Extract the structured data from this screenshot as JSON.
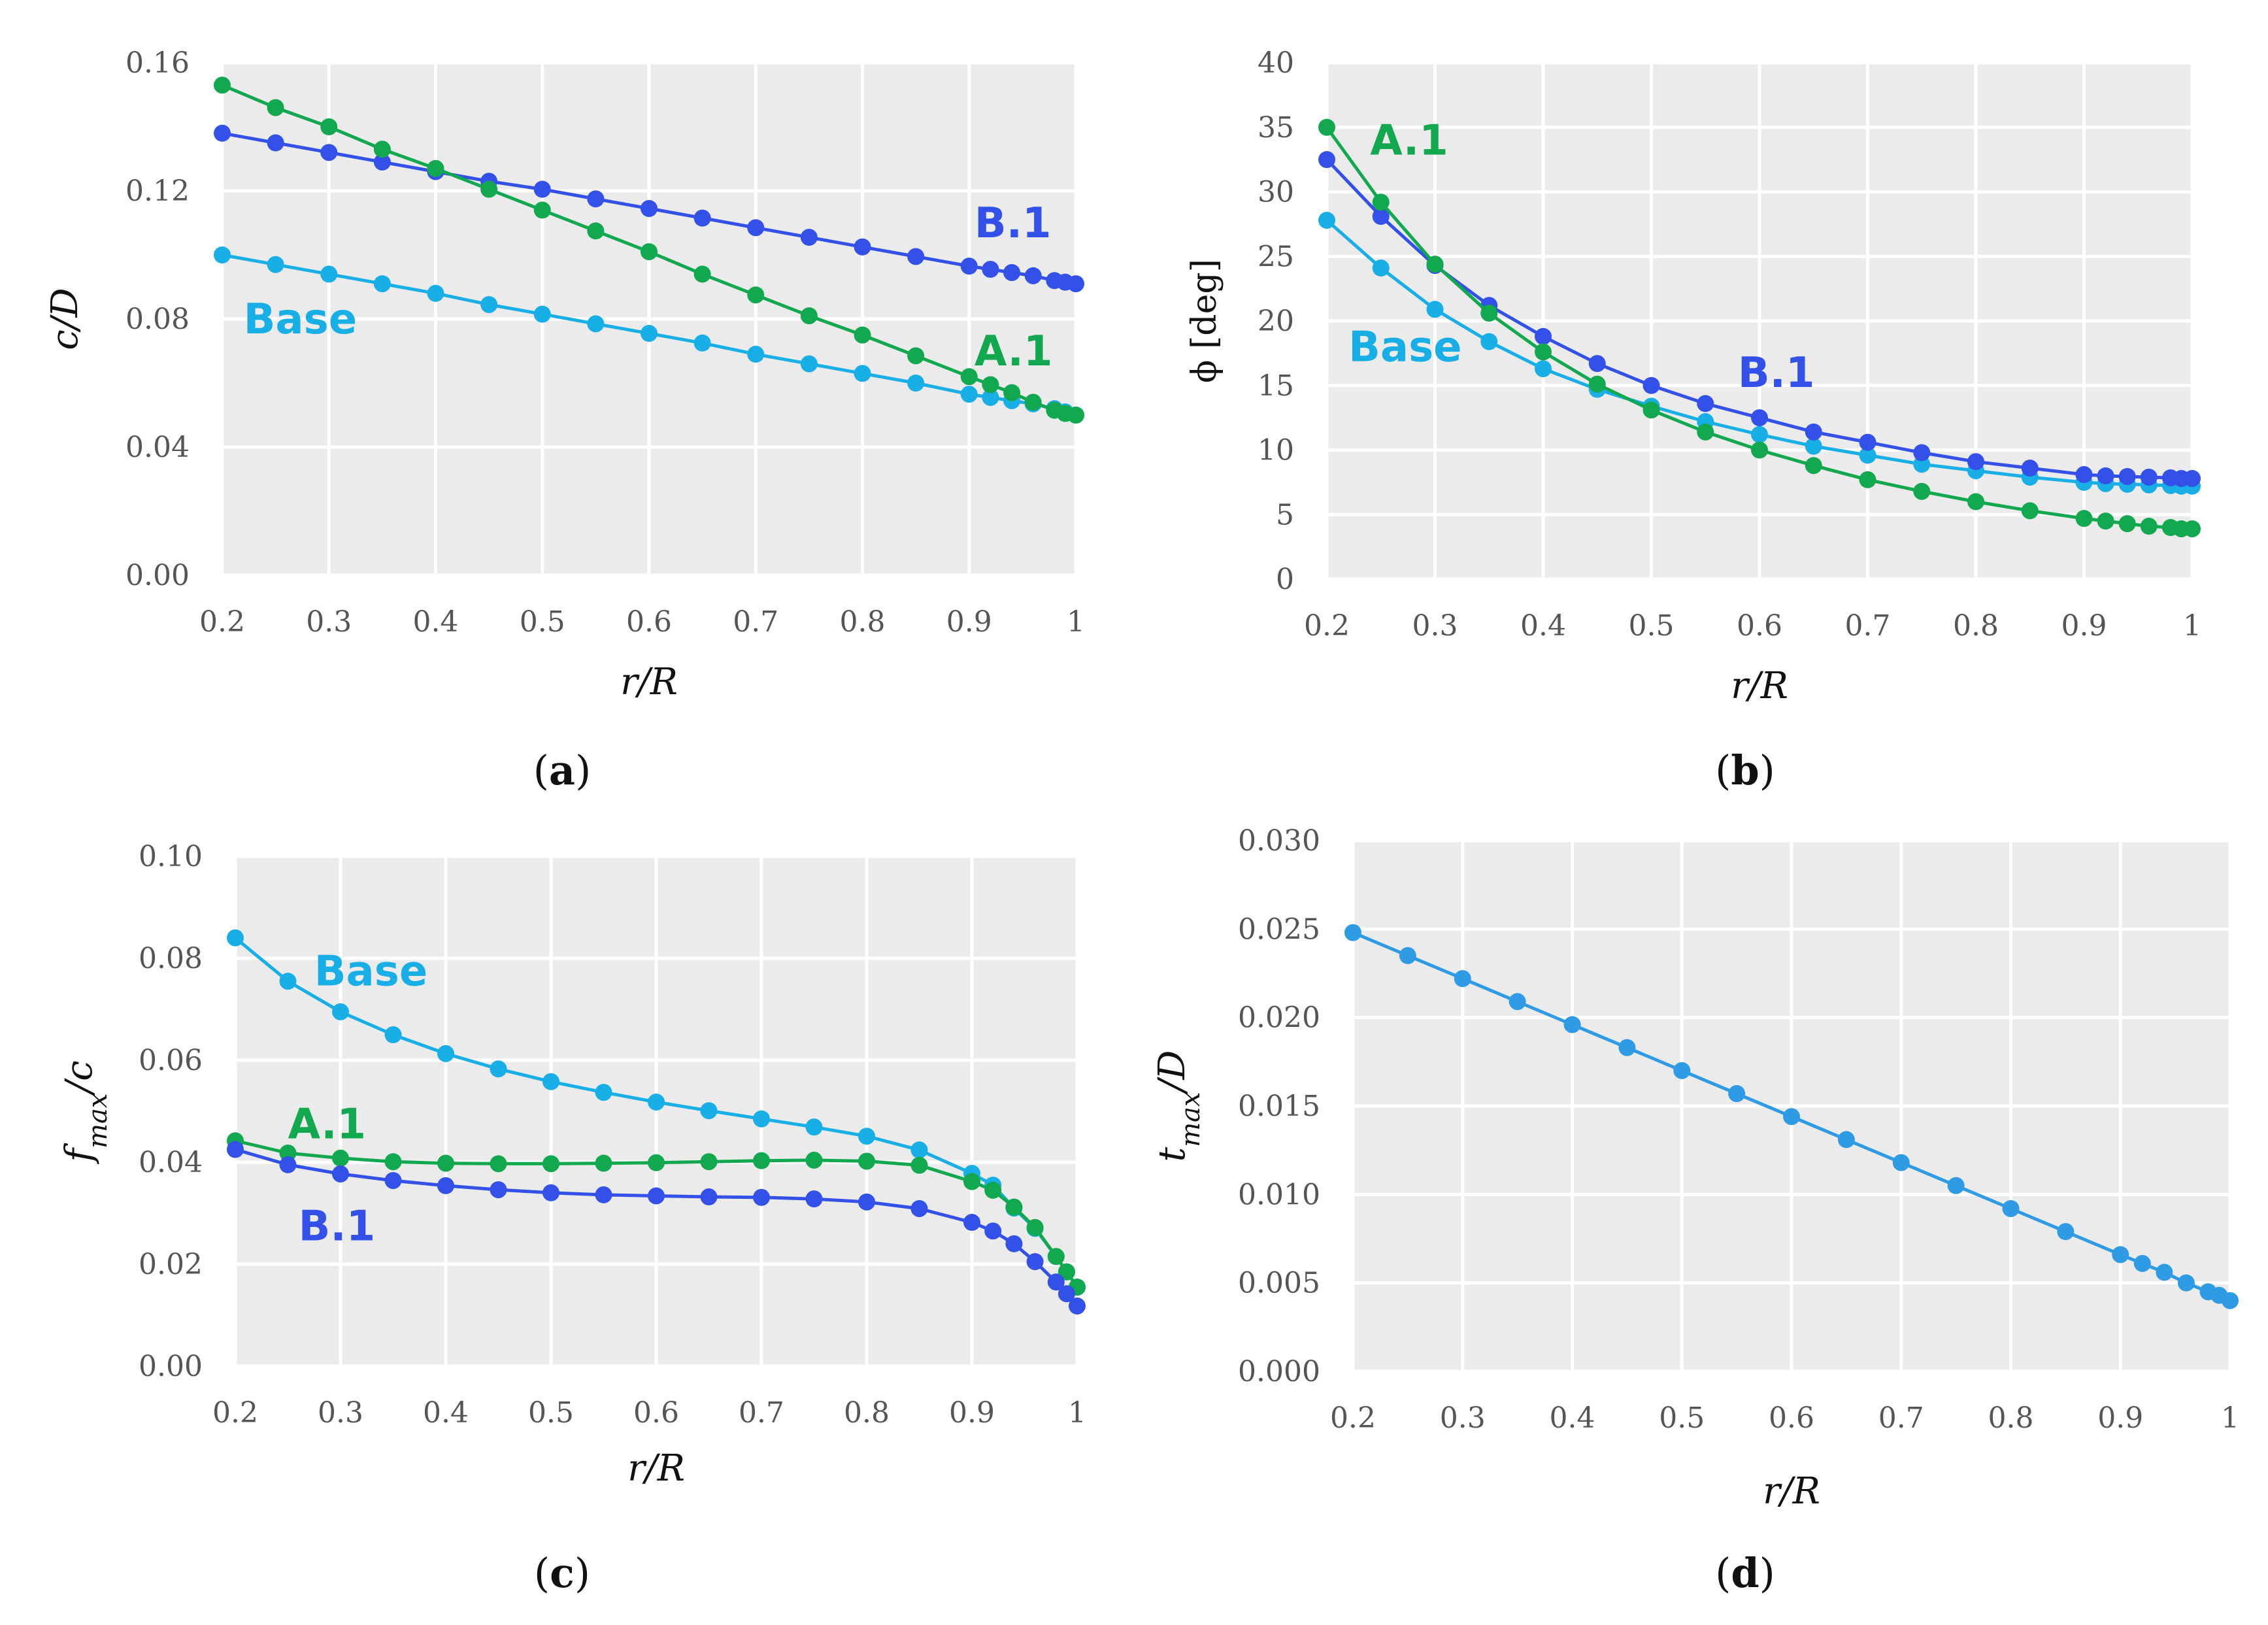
{
  "chart_data": [
    {
      "id": "a",
      "type": "line",
      "panel_label": "(a)",
      "panel_letter": "a",
      "xlabel": "r/R",
      "ylabel": "c/D",
      "xlim": [
        0.2,
        1.0
      ],
      "ylim": [
        0.0,
        0.16
      ],
      "xticks": [
        "0.2",
        "0.3",
        "0.4",
        "0.5",
        "0.6",
        "0.7",
        "0.8",
        "0.9",
        "1"
      ],
      "xtick_values": [
        0.2,
        0.3,
        0.4,
        0.5,
        0.6,
        0.7,
        0.8,
        0.9,
        1.0
      ],
      "yticks": [
        "0.00",
        "0.04",
        "0.08",
        "0.12",
        "0.16"
      ],
      "ytick_values": [
        0.0,
        0.04,
        0.08,
        0.12,
        0.16
      ],
      "x": [
        0.2,
        0.25,
        0.3,
        0.35,
        0.4,
        0.45,
        0.5,
        0.55,
        0.6,
        0.65,
        0.7,
        0.75,
        0.8,
        0.85,
        0.9,
        0.92,
        0.94,
        0.96,
        0.98,
        0.99,
        1.0
      ],
      "series": [
        {
          "name": "Base",
          "color": "#18aee6",
          "label_anchor": [
            0.22,
            0.08
          ],
          "values": [
            0.1,
            0.097,
            0.094,
            0.091,
            0.088,
            0.0845,
            0.0815,
            0.0785,
            0.0755,
            0.0725,
            0.069,
            0.066,
            0.063,
            0.06,
            0.0565,
            0.0555,
            0.0545,
            0.0535,
            0.052,
            0.051,
            0.05
          ]
        },
        {
          "name": "B.1",
          "color": "#3350e8",
          "label_anchor": [
            0.905,
            0.11
          ],
          "values": [
            0.138,
            0.135,
            0.132,
            0.129,
            0.126,
            0.123,
            0.1205,
            0.1175,
            0.1145,
            0.1115,
            0.1085,
            0.1055,
            0.1025,
            0.0995,
            0.0965,
            0.0955,
            0.0945,
            0.0935,
            0.092,
            0.0915,
            0.091
          ]
        },
        {
          "name": "A.1",
          "color": "#12a84f",
          "label_anchor": [
            0.905,
            0.07
          ],
          "values": [
            0.153,
            0.146,
            0.14,
            0.133,
            0.127,
            0.1205,
            0.114,
            0.1075,
            0.101,
            0.094,
            0.0875,
            0.081,
            0.075,
            0.0685,
            0.062,
            0.0595,
            0.057,
            0.054,
            0.0515,
            0.0505,
            0.05
          ]
        }
      ]
    },
    {
      "id": "b",
      "type": "line",
      "panel_label": "(b)",
      "panel_letter": "b",
      "xlabel": "r/R",
      "ylabel": "ϕ [deg]",
      "xlim": [
        0.2,
        1.0
      ],
      "ylim": [
        0,
        40
      ],
      "xticks": [
        "0.2",
        "0.3",
        "0.4",
        "0.5",
        "0.6",
        "0.7",
        "0.8",
        "0.9",
        "1"
      ],
      "xtick_values": [
        0.2,
        0.3,
        0.4,
        0.5,
        0.6,
        0.7,
        0.8,
        0.9,
        1.0
      ],
      "yticks": [
        "0",
        "5",
        "10",
        "15",
        "20",
        "25",
        "30",
        "35",
        "40"
      ],
      "ytick_values": [
        0,
        5,
        10,
        15,
        20,
        25,
        30,
        35,
        40
      ],
      "x": [
        0.2,
        0.25,
        0.3,
        0.35,
        0.4,
        0.45,
        0.5,
        0.55,
        0.6,
        0.65,
        0.7,
        0.75,
        0.8,
        0.85,
        0.9,
        0.92,
        0.94,
        0.96,
        0.98,
        0.99,
        1.0
      ],
      "series": [
        {
          "name": "Base",
          "color": "#18aee6",
          "label_anchor": [
            0.22,
            18
          ],
          "values": [
            27.8,
            24.1,
            20.9,
            18.4,
            16.3,
            14.7,
            13.4,
            12.2,
            11.2,
            10.3,
            9.6,
            8.9,
            8.4,
            7.9,
            7.5,
            7.4,
            7.35,
            7.3,
            7.25,
            7.2,
            7.2
          ]
        },
        {
          "name": "B.1",
          "color": "#3350e8",
          "label_anchor": [
            0.58,
            16
          ],
          "values": [
            32.5,
            28.1,
            24.3,
            21.2,
            18.8,
            16.7,
            15.0,
            13.6,
            12.5,
            11.4,
            10.6,
            9.8,
            9.1,
            8.6,
            8.1,
            8.0,
            7.95,
            7.9,
            7.85,
            7.8,
            7.8
          ]
        },
        {
          "name": "A.1",
          "color": "#12a84f",
          "label_anchor": [
            0.24,
            34
          ],
          "values": [
            35.0,
            29.2,
            24.4,
            20.6,
            17.6,
            15.1,
            13.1,
            11.4,
            10.0,
            8.8,
            7.7,
            6.8,
            6.0,
            5.3,
            4.7,
            4.5,
            4.3,
            4.1,
            4.0,
            3.9,
            3.9
          ]
        }
      ]
    },
    {
      "id": "c",
      "type": "line",
      "panel_label": "(c)",
      "panel_letter": "c",
      "xlabel": "r/R",
      "ylabel": "fmax/c",
      "ylabel_main": "f",
      "ylabel_sub": "max",
      "ylabel_tail": "/c",
      "xlim": [
        0.2,
        1.0
      ],
      "ylim": [
        0.0,
        0.1
      ],
      "xticks": [
        "0.2",
        "0.3",
        "0.4",
        "0.5",
        "0.6",
        "0.7",
        "0.8",
        "0.9",
        "1"
      ],
      "xtick_values": [
        0.2,
        0.3,
        0.4,
        0.5,
        0.6,
        0.7,
        0.8,
        0.9,
        1.0
      ],
      "yticks": [
        "0.00",
        "0.02",
        "0.04",
        "0.06",
        "0.08",
        "0.10"
      ],
      "ytick_values": [
        0.0,
        0.02,
        0.04,
        0.06,
        0.08,
        0.1
      ],
      "x": [
        0.2,
        0.25,
        0.3,
        0.35,
        0.4,
        0.45,
        0.5,
        0.55,
        0.6,
        0.65,
        0.7,
        0.75,
        0.8,
        0.85,
        0.9,
        0.92,
        0.94,
        0.96,
        0.98,
        0.99,
        1.0
      ],
      "series": [
        {
          "name": "Base",
          "color": "#18aee6",
          "label_anchor": [
            0.275,
            0.0775
          ],
          "values": [
            0.084,
            0.0755,
            0.0695,
            0.065,
            0.0613,
            0.0583,
            0.0558,
            0.0537,
            0.0518,
            0.0501,
            0.0485,
            0.0469,
            0.0451,
            0.0424,
            0.0378,
            0.0355,
            0.031,
            0.027,
            0.0215,
            0.0185,
            0.0155
          ]
        },
        {
          "name": "A.1",
          "color": "#12a84f",
          "label_anchor": [
            0.25,
            0.0475
          ],
          "values": [
            0.0442,
            0.0418,
            0.0408,
            0.0401,
            0.0398,
            0.0397,
            0.0397,
            0.0398,
            0.0399,
            0.0401,
            0.0403,
            0.0404,
            0.0402,
            0.0394,
            0.0362,
            0.0345,
            0.0312,
            0.0272,
            0.0215,
            0.0185,
            0.0155
          ]
        },
        {
          "name": "B.1",
          "color": "#3350e8",
          "label_anchor": [
            0.26,
            0.0275
          ],
          "values": [
            0.0425,
            0.0395,
            0.0377,
            0.0364,
            0.0354,
            0.0346,
            0.034,
            0.0336,
            0.0334,
            0.0332,
            0.0331,
            0.0328,
            0.0322,
            0.0309,
            0.0282,
            0.0265,
            0.024,
            0.0205,
            0.0165,
            0.0142,
            0.0118
          ]
        }
      ]
    },
    {
      "id": "d",
      "type": "line",
      "panel_label": "(d)",
      "panel_letter": "d",
      "xlabel": "r/R",
      "ylabel": "tmax/D",
      "ylabel_main": "t",
      "ylabel_sub": "max",
      "ylabel_tail": "/D",
      "xlim": [
        0.2,
        1.0
      ],
      "ylim": [
        0.0,
        0.03
      ],
      "xticks": [
        "0.2",
        "0.3",
        "0.4",
        "0.5",
        "0.6",
        "0.7",
        "0.8",
        "0.9",
        "1"
      ],
      "xtick_values": [
        0.2,
        0.3,
        0.4,
        0.5,
        0.6,
        0.7,
        0.8,
        0.9,
        1.0
      ],
      "yticks": [
        "0.000",
        "0.005",
        "0.010",
        "0.015",
        "0.020",
        "0.025",
        "0.030"
      ],
      "ytick_values": [
        0.0,
        0.005,
        0.01,
        0.015,
        0.02,
        0.025,
        0.03
      ],
      "x": [
        0.2,
        0.25,
        0.3,
        0.35,
        0.4,
        0.45,
        0.5,
        0.55,
        0.6,
        0.65,
        0.7,
        0.75,
        0.8,
        0.85,
        0.9,
        0.92,
        0.94,
        0.96,
        0.98,
        0.99,
        1.0
      ],
      "series": [
        {
          "name": "",
          "color": "#2f9be4",
          "values": [
            0.0248,
            0.0235,
            0.0222,
            0.0209,
            0.0196,
            0.0183,
            0.017,
            0.0157,
            0.0144,
            0.0131,
            0.0118,
            0.0105,
            0.0092,
            0.0079,
            0.0066,
            0.0061,
            0.0056,
            0.005,
            0.0045,
            0.0043,
            0.004
          ]
        }
      ]
    }
  ]
}
